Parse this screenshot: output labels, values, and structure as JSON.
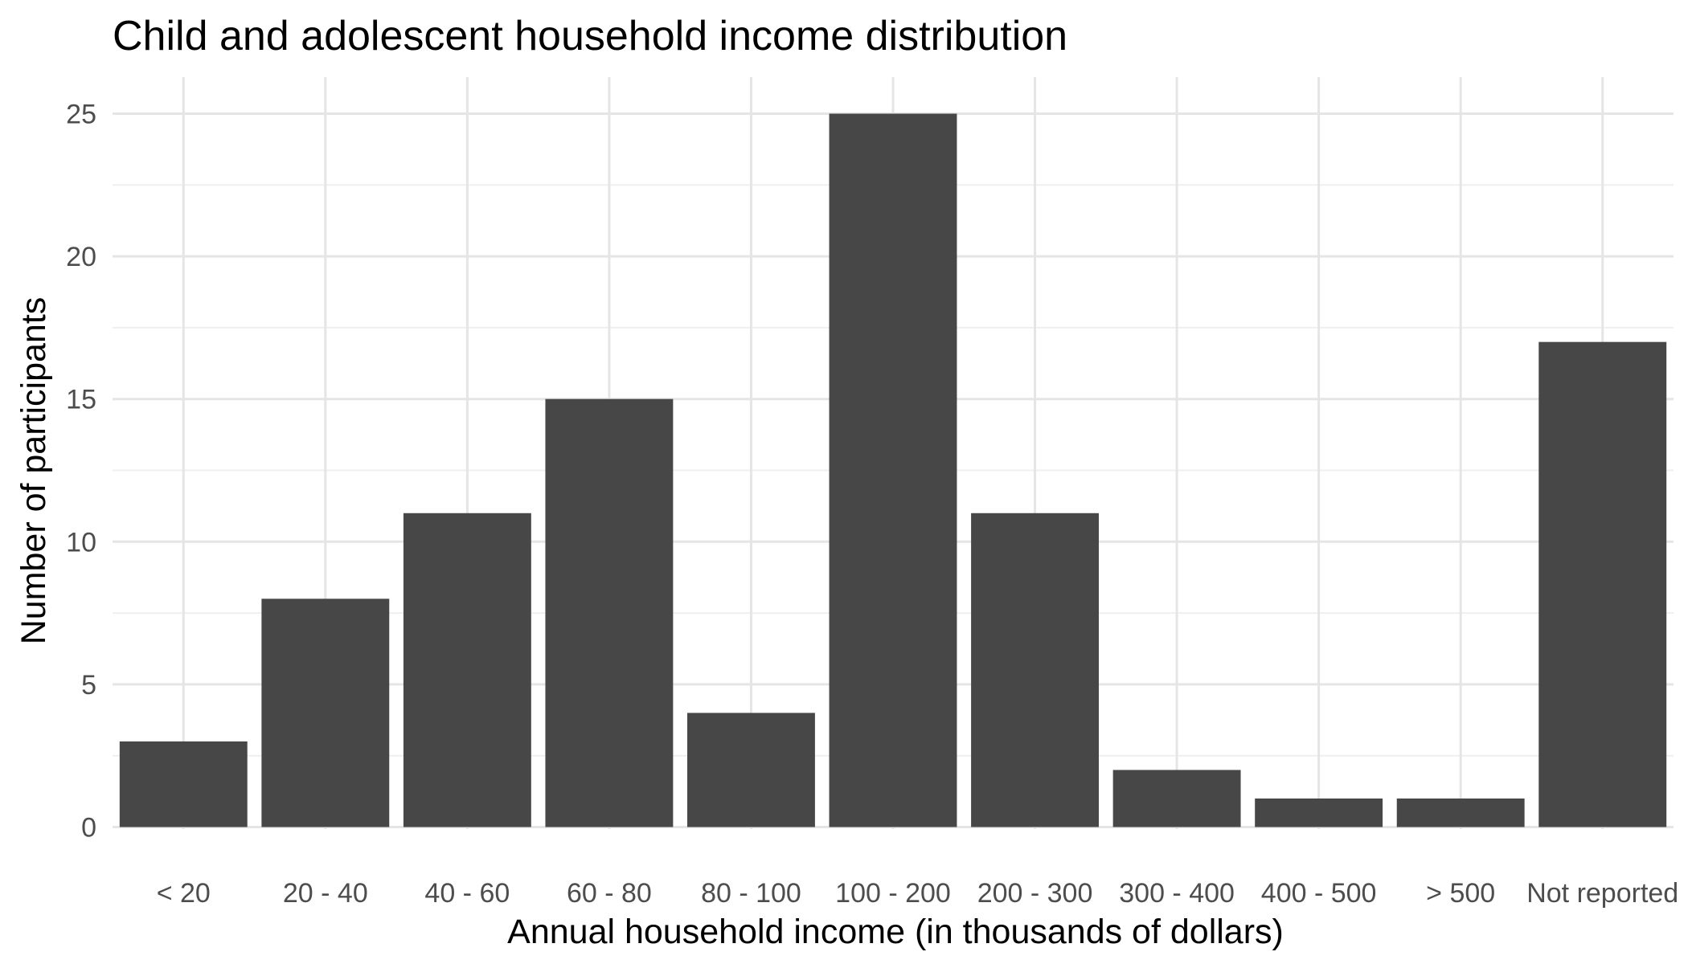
{
  "chart_data": {
    "type": "bar",
    "title": "Child and adolescent household income distribution",
    "xlabel": "Annual household income (in thousands of dollars)",
    "ylabel": "Number of participants",
    "categories": [
      "< 20",
      "20 - 40",
      "40 - 60",
      "60 - 80",
      "80 - 100",
      "100 - 200",
      "200 - 300",
      "300 - 400",
      "400 - 500",
      "> 500",
      "Not reported"
    ],
    "values": [
      3,
      8,
      11,
      15,
      4,
      25,
      11,
      2,
      1,
      1,
      17
    ],
    "ylim": [
      0,
      26.2
    ],
    "yticks": [
      0,
      5,
      10,
      15,
      20,
      25
    ],
    "ytick_labels": [
      "0",
      "5",
      "10",
      "15",
      "20",
      "25"
    ],
    "grid": true,
    "legend": "none",
    "colors": {
      "bar": "#474747",
      "grid_major": "#e5e5e5",
      "grid_minor": "#efefef",
      "tick_label": "#4d4d4d",
      "text": "#000000"
    }
  }
}
